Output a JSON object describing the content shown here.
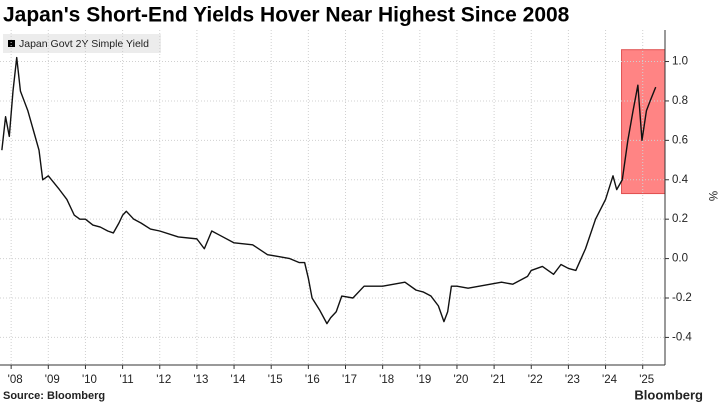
{
  "chart_data": {
    "type": "line",
    "title": "Japan's Short-End Yields Hover Near Highest Since 2008",
    "y_label": "%",
    "source": "Source: Bloomberg",
    "brand": "Bloomberg",
    "x": [
      2007.75,
      2007.85,
      2007.95,
      2008.05,
      2008.15,
      2008.25,
      2008.35,
      2008.45,
      2008.6,
      2008.75,
      2008.85,
      2009.0,
      2009.3,
      2009.5,
      2009.7,
      2009.85,
      2010.0,
      2010.2,
      2010.4,
      2010.6,
      2010.75,
      2010.9,
      2011.0,
      2011.1,
      2011.3,
      2011.5,
      2011.75,
      2012.0,
      2012.5,
      2013.0,
      2013.2,
      2013.4,
      2013.6,
      2014.0,
      2014.5,
      2014.9,
      2015.2,
      2015.5,
      2015.75,
      2015.9,
      2016.0,
      2016.1,
      2016.3,
      2016.5,
      2016.6,
      2016.75,
      2016.9,
      2017.2,
      2017.5,
      2017.8,
      2018.0,
      2018.3,
      2018.6,
      2018.9,
      2019.1,
      2019.3,
      2019.5,
      2019.65,
      2019.75,
      2019.85,
      2020.0,
      2020.3,
      2020.6,
      2020.9,
      2021.2,
      2021.5,
      2021.9,
      2022.0,
      2022.3,
      2022.6,
      2022.8,
      2023.0,
      2023.2,
      2023.46,
      2023.73,
      2024.0,
      2024.2,
      2024.3,
      2024.45,
      2024.6,
      2024.74,
      2024.87,
      2024.98,
      2025.1,
      2025.2,
      2025.35
    ],
    "series": [
      {
        "name": "Japan Govt 2Y Simple Yield",
        "color": "#111111",
        "values": [
          0.55,
          0.72,
          0.62,
          0.85,
          1.02,
          0.85,
          0.8,
          0.75,
          0.65,
          0.55,
          0.4,
          0.42,
          0.35,
          0.3,
          0.22,
          0.2,
          0.2,
          0.17,
          0.16,
          0.14,
          0.13,
          0.18,
          0.22,
          0.24,
          0.2,
          0.18,
          0.15,
          0.14,
          0.11,
          0.1,
          0.05,
          0.14,
          0.12,
          0.08,
          0.07,
          0.02,
          0.01,
          0.0,
          -0.02,
          -0.02,
          -0.1,
          -0.2,
          -0.26,
          -0.33,
          -0.3,
          -0.27,
          -0.19,
          -0.2,
          -0.14,
          -0.14,
          -0.14,
          -0.13,
          -0.12,
          -0.16,
          -0.17,
          -0.19,
          -0.24,
          -0.32,
          -0.27,
          -0.14,
          -0.14,
          -0.15,
          -0.14,
          -0.13,
          -0.12,
          -0.13,
          -0.09,
          -0.06,
          -0.04,
          -0.08,
          -0.03,
          -0.05,
          -0.06,
          0.05,
          0.2,
          0.3,
          0.42,
          0.35,
          0.4,
          0.6,
          0.75,
          0.88,
          0.6,
          0.75,
          0.8,
          0.87
        ]
      }
    ],
    "xlim": [
      2007.7,
      2025.6
    ],
    "xticks": [
      {
        "value": 2008,
        "label": "'08"
      },
      {
        "value": 2009,
        "label": "'09"
      },
      {
        "value": 2010,
        "label": "'10"
      },
      {
        "value": 2011,
        "label": "'11"
      },
      {
        "value": 2012,
        "label": "'12"
      },
      {
        "value": 2013,
        "label": "'13"
      },
      {
        "value": 2014,
        "label": "'14"
      },
      {
        "value": 2015,
        "label": "'15"
      },
      {
        "value": 2016,
        "label": "'16"
      },
      {
        "value": 2017,
        "label": "'17"
      },
      {
        "value": 2018,
        "label": "'18"
      },
      {
        "value": 2019,
        "label": "'19"
      },
      {
        "value": 2020,
        "label": "'20"
      },
      {
        "value": 2021,
        "label": "'21"
      },
      {
        "value": 2022,
        "label": "'22"
      },
      {
        "value": 2023,
        "label": "'23"
      },
      {
        "value": 2024,
        "label": "'24"
      },
      {
        "value": 2025,
        "label": "'25"
      }
    ],
    "ylim": [
      -0.54,
      1.16
    ],
    "yticks": [
      {
        "value": 1,
        "label": "1.0"
      },
      0.8,
      0.6,
      0.4,
      0.2,
      {
        "value": 0,
        "label": "0.0"
      },
      -0.2,
      -0.4
    ],
    "grid": true,
    "highlight": {
      "x": [
        2024.43,
        2025.6
      ],
      "y": [
        0.33,
        1.06
      ],
      "color": "#ff8484"
    }
  }
}
